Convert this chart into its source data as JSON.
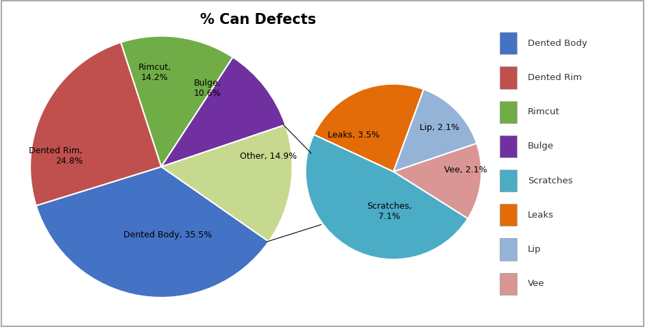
{
  "title": "% Can Defects",
  "background_color": "#FFFFFF",
  "main_labels": [
    "Dented Body",
    "Dented Rim",
    "Rimcut",
    "Bulge",
    "Other"
  ],
  "main_values": [
    35.5,
    24.8,
    14.2,
    10.6,
    14.9
  ],
  "main_colors": [
    "#4472C4",
    "#C0504D",
    "#70AD47",
    "#7030A0",
    "#C6D98F"
  ],
  "sub_labels": [
    "Leaks",
    "Lip",
    "Vee",
    "Scratches"
  ],
  "sub_values": [
    3.5,
    2.1,
    2.1,
    7.1
  ],
  "sub_colors": [
    "#E36C09",
    "#95B3D7",
    "#D99694",
    "#4BACC6"
  ],
  "legend_labels": [
    "Dented Body",
    "Dented Rim",
    "Rimcut",
    "Bulge",
    "Scratches",
    "Leaks",
    "Lip",
    "Vee"
  ],
  "legend_colors": [
    "#4472C4",
    "#C0504D",
    "#70AD47",
    "#7030A0",
    "#4BACC6",
    "#E36C09",
    "#95B3D7",
    "#D99694"
  ]
}
